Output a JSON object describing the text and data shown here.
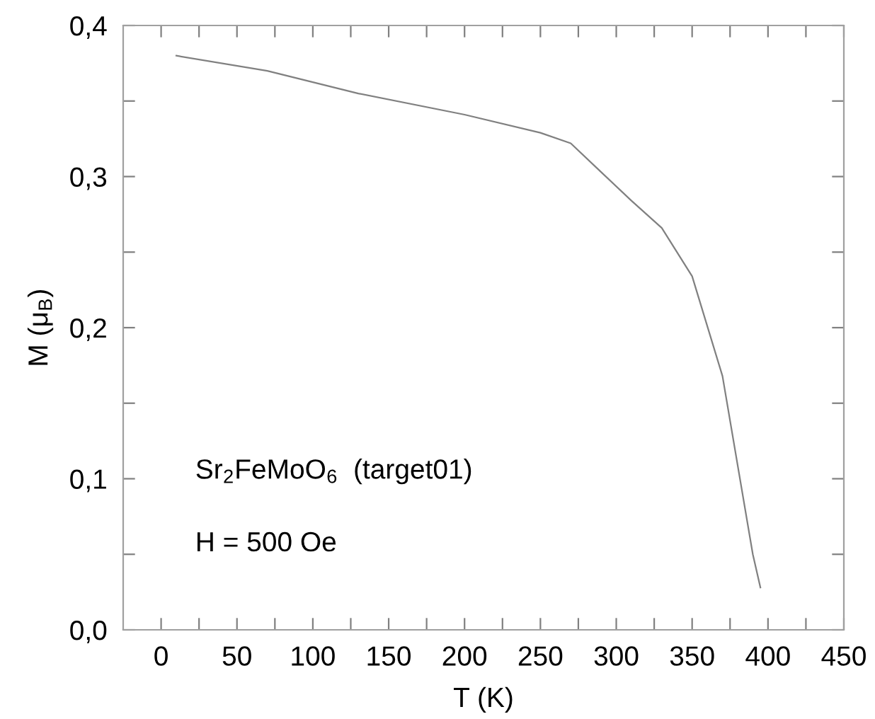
{
  "chart_data": {
    "type": "line",
    "xlabel": "T (K)",
    "ylabel": "M (μ$_{B}$)",
    "annotations": [
      "Sr$_{2}$FeMoO$_{6}$  (target01)",
      "H = 500 Oe"
    ],
    "x": [
      10,
      70,
      130,
      200,
      250,
      270,
      290,
      310,
      330,
      350,
      370,
      390,
      395
    ],
    "series": [
      {
        "color": "#808080",
        "values": [
          0.38,
          0.37,
          0.355,
          0.341,
          0.329,
          0.322,
          0.303,
          0.284,
          0.266,
          0.234,
          0.168,
          0.05,
          0.028
        ]
      }
    ],
    "xlim": [
      -25,
      450
    ],
    "xticks": [
      0,
      {
        "value": 25,
        "label": null
      },
      50,
      {
        "value": 75,
        "label": null
      },
      100,
      {
        "value": 125,
        "label": null
      },
      150,
      {
        "value": 175,
        "label": null
      },
      200,
      {
        "value": 225,
        "label": null
      },
      250,
      {
        "value": 275,
        "label": null
      },
      300,
      {
        "value": 325,
        "label": null
      },
      350,
      {
        "value": 375,
        "label": null
      },
      400,
      {
        "value": 425,
        "label": null
      },
      450
    ],
    "ylim": [
      0,
      0.4
    ],
    "yticks": [
      {
        "value": 0,
        "label": "0,0"
      },
      {
        "value": 0.05,
        "label": null
      },
      {
        "value": 0.1,
        "label": "0,1"
      },
      {
        "value": 0.15,
        "label": null
      },
      {
        "value": 0.2,
        "label": "0,2"
      },
      {
        "value": 0.25,
        "label": null
      },
      {
        "value": 0.3,
        "label": "0,3"
      },
      {
        "value": 0.35,
        "label": null
      },
      {
        "value": 0.4,
        "label": "0,4"
      }
    ],
    "grid": false,
    "legend": false,
    "marker": "none",
    "line_style": "solid"
  }
}
